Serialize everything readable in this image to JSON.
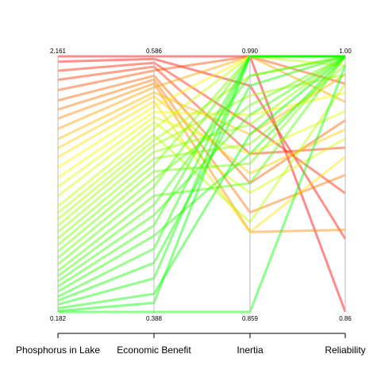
{
  "chart_data": {
    "type": "parallel-coordinates",
    "title": "",
    "axes": [
      {
        "name": "Phosphorus in Lake",
        "max_label": "2.161",
        "min_label": "0.182",
        "max": 2.161,
        "min": 0.182
      },
      {
        "name": "Economic Benefit",
        "max_label": "0.586",
        "min_label": "0.388",
        "max": 0.586,
        "min": 0.388
      },
      {
        "name": "Inertia",
        "max_label": "0.990",
        "min_label": "0.859",
        "max": 0.99,
        "min": 0.859
      },
      {
        "name": "Reliability",
        "max_label": "1.00",
        "min_label": "0.86",
        "max": 1.0,
        "min": 0.86
      }
    ],
    "color_scale": {
      "variable": "Phosphorus in Lake",
      "low_color": "#00ff00",
      "mid_color": "#ffff00",
      "high_color": "#ff0000"
    },
    "sample_solutions": [
      [
        2.161,
        0.586,
        0.99,
        0.86
      ],
      [
        2.12,
        0.584,
        0.975,
        0.9
      ],
      [
        2.05,
        0.581,
        0.955,
        0.925
      ],
      [
        1.98,
        0.578,
        0.94,
        0.95
      ],
      [
        1.9,
        0.575,
        0.99,
        0.985
      ],
      [
        1.82,
        0.571,
        0.925,
        0.965
      ],
      [
        1.75,
        0.568,
        0.91,
        0.935
      ],
      [
        1.68,
        0.565,
        0.9,
        0.905
      ],
      [
        1.6,
        0.562,
        0.99,
        0.975
      ],
      [
        1.52,
        0.558,
        0.95,
        0.99
      ],
      [
        1.45,
        0.555,
        0.93,
        0.96
      ],
      [
        1.38,
        0.551,
        0.9,
        0.945
      ],
      [
        1.3,
        0.547,
        0.99,
        1.0
      ],
      [
        1.22,
        0.543,
        0.96,
        0.98
      ],
      [
        1.15,
        0.539,
        0.94,
        0.97
      ],
      [
        1.08,
        0.535,
        0.92,
        0.955
      ],
      [
        1.0,
        0.53,
        0.99,
        0.995
      ],
      [
        0.95,
        0.525,
        0.905,
        0.985
      ],
      [
        0.9,
        0.521,
        0.98,
        1.0
      ],
      [
        0.85,
        0.517,
        0.97,
        0.99
      ],
      [
        0.8,
        0.512,
        0.955,
        1.0
      ],
      [
        0.75,
        0.507,
        0.945,
        0.995
      ],
      [
        0.7,
        0.502,
        0.99,
        1.0
      ],
      [
        0.65,
        0.497,
        0.935,
        1.0
      ],
      [
        0.6,
        0.491,
        0.965,
        1.0
      ],
      [
        0.55,
        0.485,
        0.99,
        1.0
      ],
      [
        0.5,
        0.478,
        0.925,
        1.0
      ],
      [
        0.46,
        0.471,
        0.98,
        1.0
      ],
      [
        0.42,
        0.463,
        0.96,
        1.0
      ],
      [
        0.38,
        0.455,
        0.99,
        1.0
      ],
      [
        0.34,
        0.447,
        0.94,
        1.0
      ],
      [
        0.3,
        0.437,
        0.99,
        1.0
      ],
      [
        0.27,
        0.426,
        0.975,
        1.0
      ],
      [
        0.24,
        0.414,
        0.99,
        1.0
      ],
      [
        0.21,
        0.402,
        0.95,
        1.0
      ],
      [
        0.19,
        0.395,
        0.99,
        1.0
      ],
      [
        0.182,
        0.388,
        0.859,
        0.995
      ]
    ]
  }
}
